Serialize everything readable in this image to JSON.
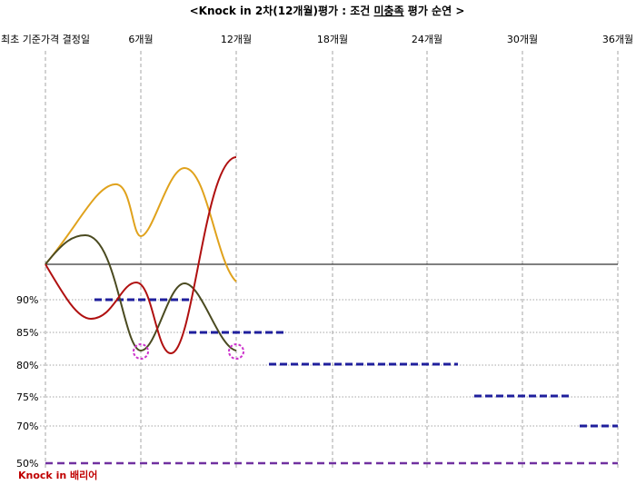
{
  "title": {
    "prefix": "<Knock in 2차(12개월)평가 : 조건 ",
    "underlined": "미충족",
    "suffix": " 평가 순연 >"
  },
  "start_label": "최초 기준가격 결정일",
  "periods": [
    "6개월",
    "12개월",
    "18개월",
    "24개월",
    "30개월",
    "36개월"
  ],
  "levels": [
    "90%",
    "85%",
    "80%",
    "75%",
    "70%",
    "50%"
  ],
  "barrier_label": "Knock in 배리어",
  "colors": {
    "grid": "#a6a6a6",
    "baseline": "#000000",
    "level_dash": "#1f1f9c",
    "barrier_dash": "#7030a0",
    "series_gold": "#e0a21c",
    "series_olive": "#4a4a20",
    "series_red": "#b01010",
    "marker_circle": "#cc33cc",
    "barrier_text": "#c00000"
  }
}
